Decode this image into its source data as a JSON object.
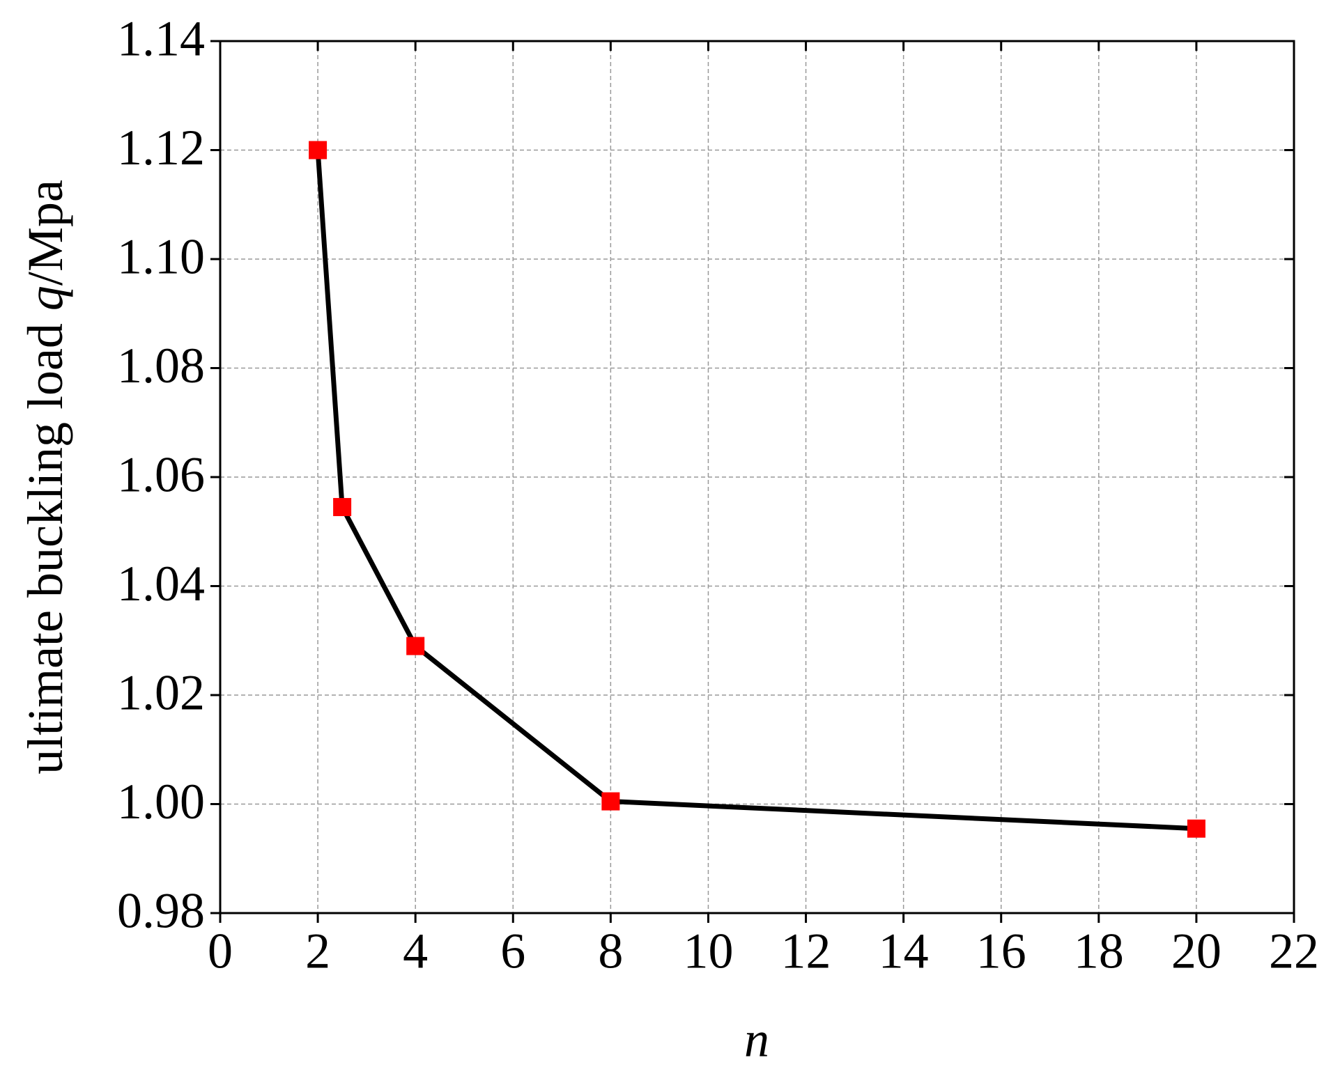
{
  "chart_data": {
    "type": "line",
    "x_label": "n",
    "y_label": {
      "text": "ultimate buckling load ",
      "symbol": "q",
      "unit": "/Mpa"
    },
    "x": [
      2,
      2.5,
      4,
      8,
      20
    ],
    "series": [
      {
        "values": [
          1.12,
          1.0545,
          1.029,
          1.0005,
          0.9955
        ],
        "color": "#000000",
        "marker_color": "#ff0000"
      }
    ],
    "xlim": [
      0,
      22
    ],
    "xticks": [
      0,
      2,
      4,
      6,
      8,
      10,
      12,
      14,
      16,
      18,
      20,
      22
    ],
    "ylim": [
      0.98,
      1.14
    ],
    "yticks": [
      0.98,
      {
        "value": 1.0,
        "label": "1.00"
      },
      1.02,
      1.04,
      1.06,
      1.08,
      {
        "value": 1.1,
        "label": "1.10"
      },
      1.12,
      1.14
    ],
    "grid": true
  }
}
